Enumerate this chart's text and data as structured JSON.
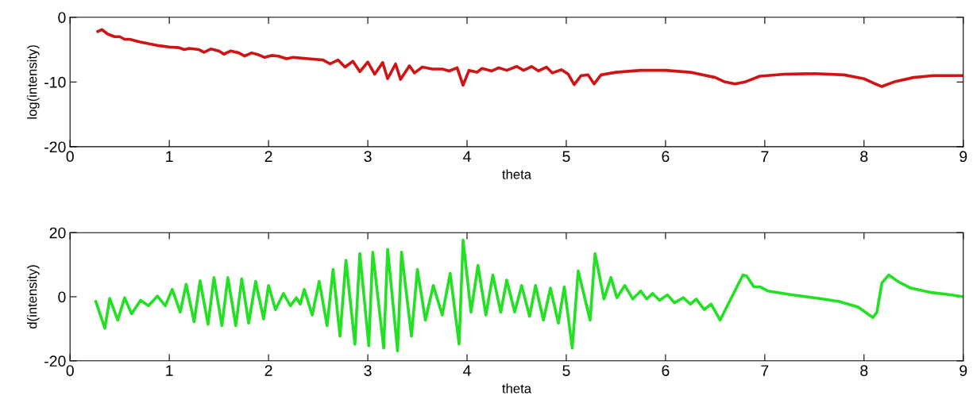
{
  "chart_data": [
    {
      "type": "line",
      "xlabel": "theta",
      "ylabel": "log(intensity)",
      "xlim": [
        0,
        9
      ],
      "xticks": [
        0,
        1,
        2,
        3,
        4,
        5,
        6,
        7,
        8,
        9
      ],
      "ylim": [
        -20,
        0
      ],
      "yticks": [
        -20,
        -10,
        0
      ],
      "series": [
        {
          "color": "#d01414",
          "x": [
            0.28,
            0.32,
            0.38,
            0.45,
            0.5,
            0.55,
            0.6,
            0.7,
            0.8,
            0.9,
            1.0,
            1.1,
            1.15,
            1.2,
            1.3,
            1.35,
            1.42,
            1.5,
            1.55,
            1.62,
            1.7,
            1.76,
            1.83,
            1.9,
            1.96,
            2.03,
            2.1,
            2.18,
            2.25,
            2.4,
            2.55,
            2.62,
            2.7,
            2.77,
            2.85,
            2.92,
            3.0,
            3.07,
            3.15,
            3.2,
            3.28,
            3.33,
            3.42,
            3.47,
            3.55,
            3.65,
            3.75,
            3.82,
            3.9,
            3.96,
            4.02,
            4.1,
            4.15,
            4.25,
            4.32,
            4.4,
            4.5,
            4.57,
            4.65,
            4.72,
            4.8,
            4.86,
            4.95,
            5.02,
            5.08,
            5.15,
            5.22,
            5.28,
            5.35,
            5.5,
            5.75,
            6.0,
            6.25,
            6.5,
            6.6,
            6.7,
            6.8,
            6.95,
            7.2,
            7.5,
            7.8,
            8.0,
            8.1,
            8.18,
            8.3,
            8.5,
            8.7,
            9.0
          ],
          "values": [
            -2.2,
            -1.9,
            -2.6,
            -3.0,
            -3.0,
            -3.4,
            -3.4,
            -3.8,
            -4.1,
            -4.4,
            -4.6,
            -4.7,
            -5.0,
            -4.8,
            -5.0,
            -5.4,
            -4.9,
            -5.2,
            -5.7,
            -5.2,
            -5.5,
            -6.0,
            -5.5,
            -5.8,
            -6.2,
            -5.9,
            -6.0,
            -6.4,
            -6.2,
            -6.4,
            -6.6,
            -7.2,
            -6.6,
            -7.7,
            -6.8,
            -8.4,
            -6.9,
            -8.8,
            -7.0,
            -9.5,
            -7.2,
            -9.6,
            -7.5,
            -8.6,
            -7.7,
            -8.0,
            -8.0,
            -8.3,
            -7.8,
            -10.5,
            -8.2,
            -8.5,
            -7.9,
            -8.3,
            -7.8,
            -8.2,
            -7.6,
            -8.2,
            -7.6,
            -8.3,
            -7.7,
            -8.6,
            -8.1,
            -8.8,
            -10.4,
            -9.0,
            -8.9,
            -10.3,
            -8.9,
            -8.5,
            -8.2,
            -8.2,
            -8.5,
            -9.3,
            -10.0,
            -10.3,
            -10.0,
            -9.1,
            -8.8,
            -8.7,
            -8.9,
            -9.5,
            -10.2,
            -10.7,
            -10.0,
            -9.3,
            -9.0,
            -9.0
          ]
        }
      ]
    },
    {
      "type": "line",
      "xlabel": "theta",
      "ylabel": "d(intensity)",
      "xlim": [
        0,
        9
      ],
      "xticks": [
        0,
        1,
        2,
        3,
        4,
        5,
        6,
        7,
        8,
        9
      ],
      "ylim": [
        -20,
        20
      ],
      "yticks": [
        -20,
        0,
        20
      ],
      "series": [
        {
          "color": "#22e022",
          "x": [
            0.26,
            0.35,
            0.4,
            0.48,
            0.55,
            0.62,
            0.71,
            0.79,
            0.88,
            0.96,
            1.03,
            1.11,
            1.17,
            1.25,
            1.31,
            1.39,
            1.45,
            1.53,
            1.59,
            1.67,
            1.73,
            1.8,
            1.87,
            1.95,
            2.0,
            2.07,
            2.15,
            2.22,
            2.28,
            2.32,
            2.36,
            2.44,
            2.51,
            2.59,
            2.65,
            2.72,
            2.78,
            2.87,
            2.92,
            3.01,
            3.05,
            3.16,
            3.2,
            3.3,
            3.34,
            3.44,
            3.5,
            3.58,
            3.66,
            3.75,
            3.83,
            3.92,
            3.96,
            4.04,
            4.11,
            4.19,
            4.26,
            4.34,
            4.4,
            4.48,
            4.55,
            4.63,
            4.69,
            4.77,
            4.84,
            4.92,
            4.98,
            5.06,
            5.12,
            5.24,
            5.29,
            5.38,
            5.45,
            5.51,
            5.59,
            5.67,
            5.75,
            5.81,
            5.87,
            5.94,
            6.02,
            6.09,
            6.18,
            6.25,
            6.31,
            6.39,
            6.46,
            6.55,
            6.78,
            6.82,
            6.89,
            6.95,
            7.03,
            7.27,
            7.54,
            7.75,
            7.94,
            8.09,
            8.13,
            8.18,
            8.25,
            8.34,
            8.47,
            8.66,
            8.87,
            9.0
          ],
          "values": [
            -1.5,
            -9.8,
            -0.5,
            -7.3,
            -0.3,
            -5.3,
            -1.1,
            -2.8,
            0.2,
            -2.8,
            2.3,
            -4.8,
            3.9,
            -7.8,
            5,
            -8.6,
            6,
            -9,
            6,
            -9,
            5.6,
            -8.2,
            4.8,
            -6.9,
            3.5,
            -4,
            1,
            -2.8,
            -0.3,
            -2.3,
            2.3,
            -5.7,
            4.8,
            -9,
            8.5,
            -12.3,
            11.4,
            -14.8,
            13.5,
            -15.3,
            13.9,
            -16,
            14.8,
            -16.9,
            13.9,
            -12.3,
            8.5,
            -7.3,
            3.5,
            -5.7,
            7.3,
            -14.8,
            17.7,
            -4.8,
            9.8,
            -5.7,
            6.8,
            -4.8,
            5.2,
            -4.8,
            3.5,
            -6.1,
            3.5,
            -7.3,
            2.7,
            -8.2,
            3.1,
            -16,
            8.1,
            -7.3,
            13.5,
            -0.7,
            6,
            -0.3,
            3.5,
            -0.7,
            1.8,
            -0.7,
            1,
            -1.1,
            0.6,
            -1.9,
            -0.3,
            -2.3,
            -0.7,
            -4,
            -2.3,
            -7.3,
            6.8,
            6.4,
            3.1,
            3.1,
            1.8,
            0.6,
            -0.5,
            -1.5,
            -3.2,
            -6.5,
            -4.8,
            4.3,
            6.8,
            4.8,
            2.7,
            1.4,
            0.6,
            0
          ]
        }
      ]
    }
  ]
}
